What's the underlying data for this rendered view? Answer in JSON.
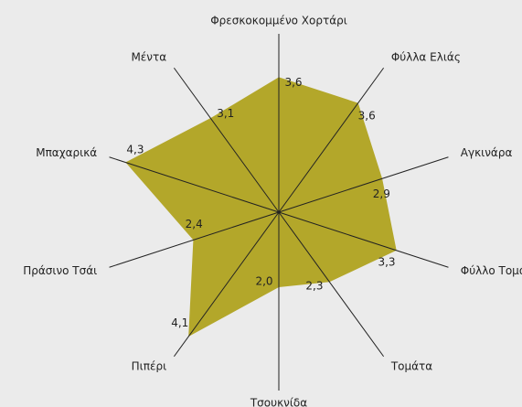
{
  "chart_data": {
    "type": "radar",
    "categories": [
      "Φρεσκοκομμένο Χορτάρι",
      "Φύλλα Ελιάς",
      "Αγκινάρα",
      "Φύλλο Τομάτας",
      "Τομάτα",
      "Τσουκνίδα",
      "Πιπέρι",
      "Πράσινο Τσάι",
      "Μπαχαρικά",
      "Μέντα"
    ],
    "values": [
      3.6,
      3.6,
      2.9,
      3.3,
      2.3,
      2.0,
      4.1,
      2.4,
      4.3,
      3.1
    ],
    "value_labels": [
      "3,6",
      "3,6",
      "2,9",
      "3,3",
      "2,3",
      "2,0",
      "4,1",
      "2,4",
      "4,3",
      "3,1"
    ],
    "color": "#b3a72a"
  }
}
